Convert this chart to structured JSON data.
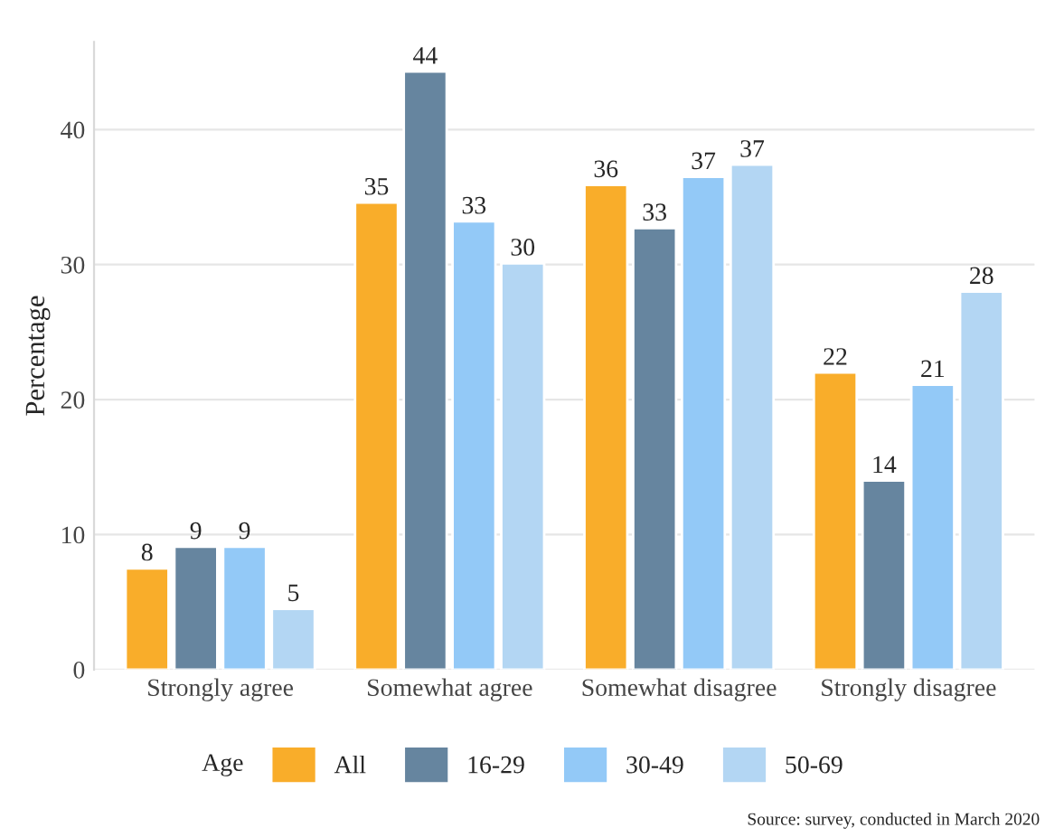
{
  "chart_data": {
    "type": "bar",
    "ylabel": "Percentage",
    "legend_title": "Age",
    "categories": [
      "Strongly agree",
      "Somewhat agree",
      "Somewhat disagree",
      "Strongly disagree"
    ],
    "series": [
      {
        "name": "All",
        "color": "#f9ad2a",
        "values": [
          7.5,
          34.6,
          35.9,
          22.0
        ],
        "value_labels": [
          "8",
          "35",
          "36",
          "22"
        ]
      },
      {
        "name": "16-29",
        "color": "#66859f",
        "values": [
          9.1,
          44.3,
          32.7,
          14.0
        ],
        "value_labels": [
          "9",
          "44",
          "33",
          "14"
        ]
      },
      {
        "name": "30-49",
        "color": "#93c9f7",
        "values": [
          9.1,
          33.2,
          36.5,
          21.1
        ],
        "value_labels": [
          "9",
          "33",
          "37",
          "21"
        ]
      },
      {
        "name": "50-69",
        "color": "#b3d6f3",
        "values": [
          4.5,
          30.1,
          37.4,
          28.0
        ],
        "value_labels": [
          "5",
          "30",
          "37",
          "28"
        ]
      }
    ],
    "ylim": [
      0,
      46.5
    ],
    "yticks": [
      0,
      10,
      20,
      30,
      40
    ],
    "grid": "y",
    "legend": "bottom",
    "annotations": [
      "Source: survey, conducted in March 2020"
    ]
  }
}
